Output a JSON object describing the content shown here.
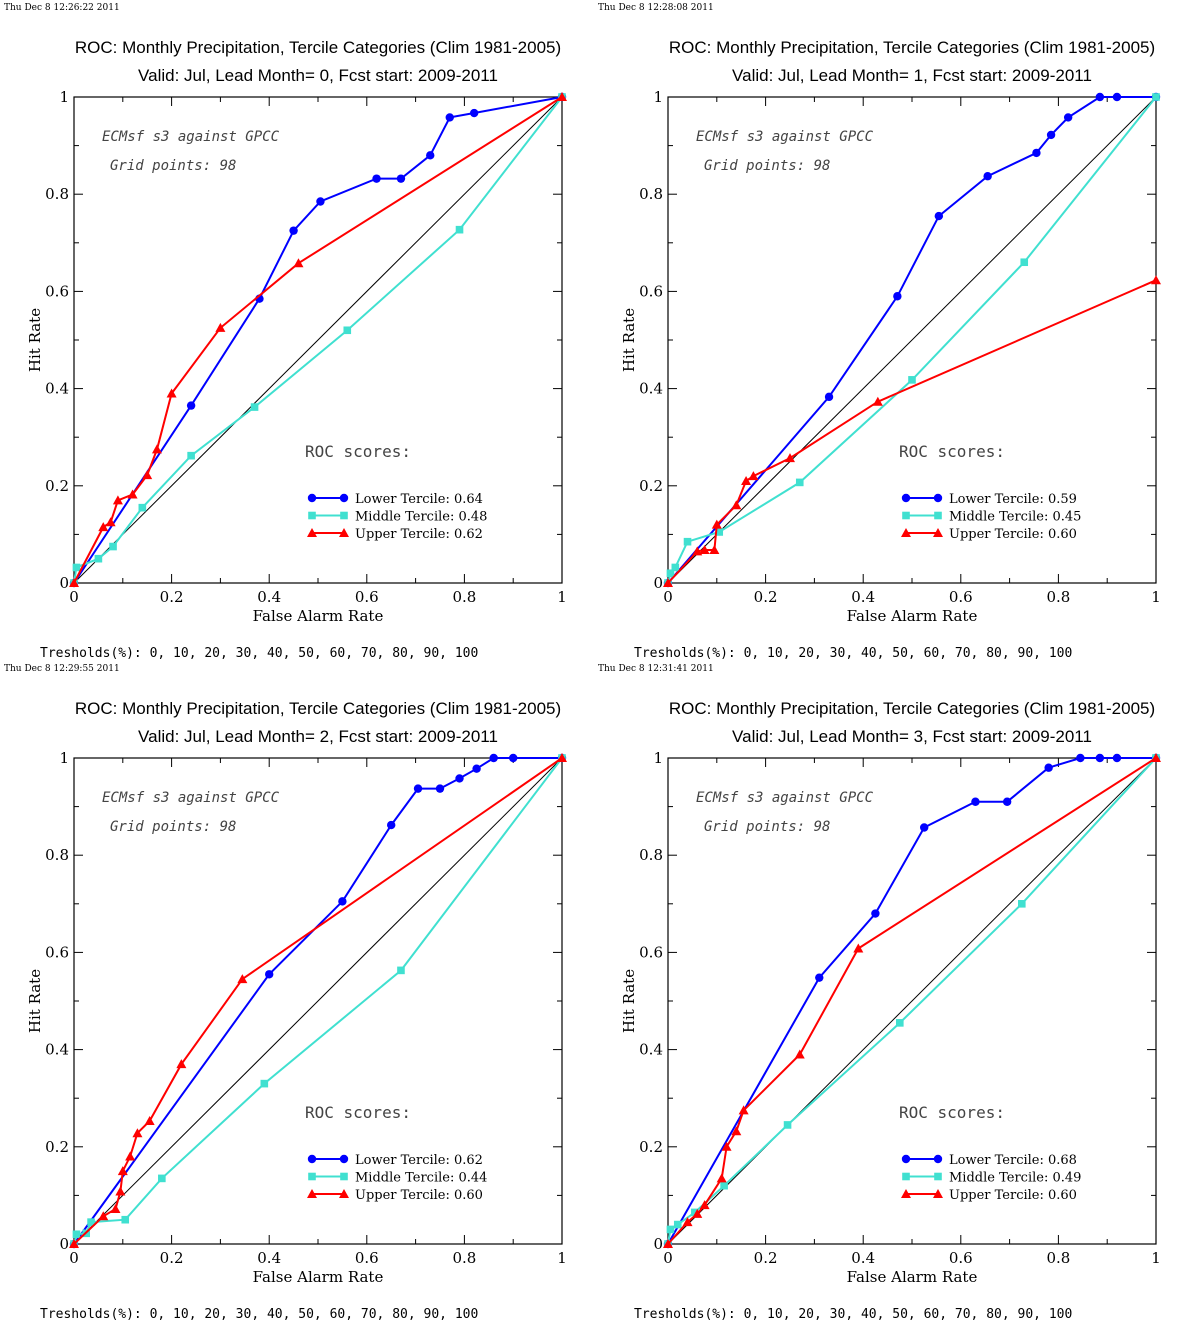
{
  "chart_data": [
    {
      "type": "line",
      "timestamp": "Thu Dec  8 12:26:22 2011",
      "title": "ROC: Monthly Precipitation, Tercile Categories (Clim 1981-2005)",
      "subtitle": "Valid: Jul, Lead Month= 0, Fcst start: 2009-2011",
      "xlabel": "False Alarm Rate",
      "ylabel": "Hit Rate",
      "xlim": [
        0,
        1
      ],
      "ylim": [
        0,
        1
      ],
      "xticks": [
        "0",
        "0.2",
        "0.4",
        "0.6",
        "0.8",
        "1"
      ],
      "yticks": [
        "0",
        "0.2",
        "0.4",
        "0.6",
        "0.8",
        "1"
      ],
      "annotation_line1": "ECMsf s3 against GPCC",
      "annotation_line2": "Grid points:   98",
      "scores_label": "ROC scores:",
      "thresholds": "Tresholds(%): 0, 10, 20, 30, 40, 50, 60, 70, 80, 90, 100",
      "diagonal": true,
      "legend_position": "lower-right",
      "series": [
        {
          "name": "Lower Tercile: 0.64",
          "color": "#0000ff",
          "marker": "circle",
          "x": [
            0,
            0.24,
            0.38,
            0.45,
            0.505,
            0.62,
            0.67,
            0.73,
            0.77,
            0.82,
            1
          ],
          "y": [
            0,
            0.365,
            0.585,
            0.725,
            0.785,
            0.832,
            0.832,
            0.88,
            0.958,
            0.967,
            1
          ]
        },
        {
          "name": "Middle Tercile: 0.48",
          "color": "#40e0d0",
          "marker": "square",
          "x": [
            0,
            0.005,
            0.05,
            0.08,
            0.14,
            0.24,
            0.37,
            0.56,
            0.79,
            1
          ],
          "y": [
            0,
            0.032,
            0.05,
            0.075,
            0.155,
            0.262,
            0.362,
            0.52,
            0.727,
            1
          ]
        },
        {
          "name": "Upper Tercile: 0.62",
          "color": "#ff0000",
          "marker": "triangle",
          "x": [
            0,
            0.06,
            0.075,
            0.09,
            0.12,
            0.15,
            0.17,
            0.2,
            0.3,
            0.46,
            1
          ],
          "y": [
            0,
            0.115,
            0.125,
            0.17,
            0.182,
            0.222,
            0.275,
            0.39,
            0.525,
            0.658,
            1
          ]
        }
      ]
    },
    {
      "type": "line",
      "timestamp": "Thu Dec  8 12:28:08 2011",
      "title": "ROC: Monthly Precipitation, Tercile Categories (Clim 1981-2005)",
      "subtitle": "Valid: Jul, Lead Month= 1, Fcst start: 2009-2011",
      "xlabel": "False Alarm Rate",
      "ylabel": "Hit Rate",
      "xlim": [
        0,
        1
      ],
      "ylim": [
        0,
        1
      ],
      "xticks": [
        "0",
        "0.2",
        "0.4",
        "0.6",
        "0.8",
        "1"
      ],
      "yticks": [
        "0",
        "0.2",
        "0.4",
        "0.6",
        "0.8",
        "1"
      ],
      "annotation_line1": "ECMsf s3 against GPCC",
      "annotation_line2": "Grid points:   98",
      "scores_label": "ROC scores:",
      "thresholds": "Tresholds(%): 0, 10, 20, 30, 40, 50, 60, 70, 80, 90, 100",
      "diagonal": true,
      "legend_position": "lower-right",
      "series": [
        {
          "name": "Lower Tercile: 0.59",
          "color": "#0000ff",
          "marker": "circle",
          "x": [
            0,
            0.33,
            0.47,
            0.555,
            0.655,
            0.755,
            0.785,
            0.82,
            0.885,
            0.92,
            1
          ],
          "y": [
            0,
            0.383,
            0.59,
            0.755,
            0.837,
            0.885,
            0.922,
            0.958,
            1,
            1,
            1
          ]
        },
        {
          "name": "Middle Tercile: 0.45",
          "color": "#40e0d0",
          "marker": "square",
          "x": [
            0,
            0.005,
            0.015,
            0.04,
            0.105,
            0.27,
            0.5,
            0.73,
            1
          ],
          "y": [
            0,
            0.02,
            0.032,
            0.085,
            0.105,
            0.207,
            0.418,
            0.66,
            1
          ]
        },
        {
          "name": "Upper Tercile: 0.60",
          "color": "#ff0000",
          "marker": "triangle",
          "x": [
            0,
            0.06,
            0.075,
            0.095,
            0.1,
            0.14,
            0.16,
            0.175,
            0.25,
            0.43,
            1
          ],
          "y": [
            0,
            0.065,
            0.068,
            0.068,
            0.12,
            0.16,
            0.21,
            0.22,
            0.257,
            0.373,
            0.623
          ]
        }
      ]
    },
    {
      "type": "line",
      "timestamp": "Thu Dec  8 12:29:55 2011",
      "title": "ROC: Monthly Precipitation, Tercile Categories (Clim 1981-2005)",
      "subtitle": "Valid: Jul, Lead Month= 2, Fcst start: 2009-2011",
      "xlabel": "False Alarm Rate",
      "ylabel": "Hit Rate",
      "xlim": [
        0,
        1
      ],
      "ylim": [
        0,
        1
      ],
      "xticks": [
        "0",
        "0.2",
        "0.4",
        "0.6",
        "0.8",
        "1"
      ],
      "yticks": [
        "0",
        "0.2",
        "0.4",
        "0.6",
        "0.8",
        "1"
      ],
      "annotation_line1": "ECMsf s3 against GPCC",
      "annotation_line2": "Grid points:   98",
      "scores_label": "ROC scores:",
      "thresholds": "Tresholds(%): 0, 10, 20, 30, 40, 50, 60, 70, 80, 90, 100",
      "diagonal": true,
      "legend_position": "lower-right",
      "series": [
        {
          "name": "Lower Tercile: 0.62",
          "color": "#0000ff",
          "marker": "circle",
          "x": [
            0,
            0.4,
            0.55,
            0.65,
            0.705,
            0.75,
            0.79,
            0.825,
            0.86,
            0.9,
            1
          ],
          "y": [
            0,
            0.555,
            0.705,
            0.862,
            0.937,
            0.937,
            0.958,
            0.978,
            1,
            1,
            1
          ]
        },
        {
          "name": "Middle Tercile: 0.44",
          "color": "#40e0d0",
          "marker": "square",
          "x": [
            0,
            0.005,
            0.025,
            0.035,
            0.105,
            0.18,
            0.39,
            0.67,
            1
          ],
          "y": [
            0,
            0.02,
            0.022,
            0.045,
            0.05,
            0.135,
            0.33,
            0.563,
            1
          ]
        },
        {
          "name": "Upper Tercile: 0.60",
          "color": "#ff0000",
          "marker": "triangle",
          "x": [
            0,
            0.06,
            0.085,
            0.095,
            0.1,
            0.115,
            0.13,
            0.155,
            0.22,
            0.345,
            1
          ],
          "y": [
            0,
            0.057,
            0.072,
            0.108,
            0.15,
            0.18,
            0.228,
            0.253,
            0.37,
            0.545,
            1
          ]
        }
      ]
    },
    {
      "type": "line",
      "timestamp": "Thu Dec  8 12:31:41 2011",
      "title": "ROC: Monthly Precipitation, Tercile Categories (Clim 1981-2005)",
      "subtitle": "Valid: Jul, Lead Month= 3, Fcst start: 2009-2011",
      "xlabel": "False Alarm Rate",
      "ylabel": "Hit Rate",
      "xlim": [
        0,
        1
      ],
      "ylim": [
        0,
        1
      ],
      "xticks": [
        "0",
        "0.2",
        "0.4",
        "0.6",
        "0.8",
        "1"
      ],
      "yticks": [
        "0",
        "0.2",
        "0.4",
        "0.6",
        "0.8",
        "1"
      ],
      "annotation_line1": "ECMsf s3 against GPCC",
      "annotation_line2": "Grid points:   98",
      "scores_label": "ROC scores:",
      "thresholds": "Tresholds(%): 0, 10, 20, 30, 40, 50, 60, 70, 80, 90, 100",
      "diagonal": true,
      "legend_position": "lower-right",
      "series": [
        {
          "name": "Lower Tercile: 0.68",
          "color": "#0000ff",
          "marker": "circle",
          "x": [
            0,
            0.31,
            0.425,
            0.525,
            0.63,
            0.695,
            0.78,
            0.845,
            0.885,
            0.92,
            1
          ],
          "y": [
            0,
            0.548,
            0.68,
            0.857,
            0.91,
            0.91,
            0.98,
            1,
            1,
            1,
            1
          ]
        },
        {
          "name": "Middle Tercile: 0.49",
          "color": "#40e0d0",
          "marker": "square",
          "x": [
            0,
            0.005,
            0.02,
            0.055,
            0.115,
            0.245,
            0.475,
            0.725,
            1
          ],
          "y": [
            0,
            0.03,
            0.04,
            0.065,
            0.12,
            0.245,
            0.455,
            0.7,
            1
          ]
        },
        {
          "name": "Upper Tercile: 0.60",
          "color": "#ff0000",
          "marker": "triangle",
          "x": [
            0,
            0.04,
            0.06,
            0.075,
            0.11,
            0.12,
            0.14,
            0.155,
            0.27,
            0.39,
            1
          ],
          "y": [
            0,
            0.045,
            0.062,
            0.08,
            0.135,
            0.2,
            0.232,
            0.275,
            0.39,
            0.608,
            1
          ]
        }
      ]
    }
  ]
}
